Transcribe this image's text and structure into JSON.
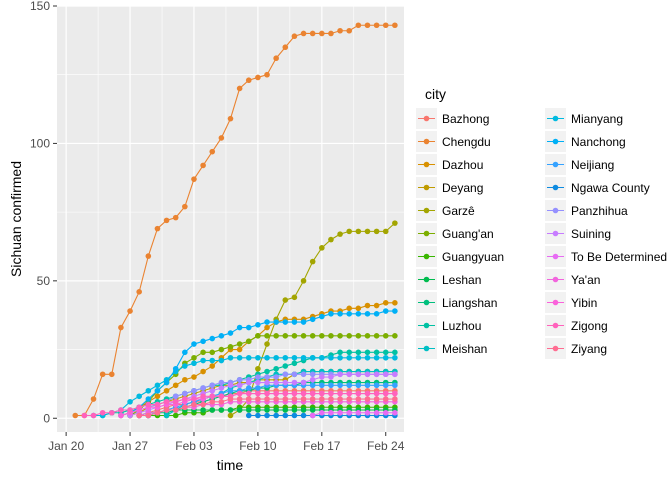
{
  "chart_data": {
    "type": "line",
    "title": "",
    "xlabel": "time",
    "ylabel": "Sichuan  confirmed",
    "x": [
      "2020-01-21",
      "2020-01-22",
      "2020-01-23",
      "2020-01-24",
      "2020-01-25",
      "2020-01-26",
      "2020-01-27",
      "2020-01-28",
      "2020-01-29",
      "2020-01-30",
      "2020-01-31",
      "2020-02-01",
      "2020-02-02",
      "2020-02-03",
      "2020-02-04",
      "2020-02-05",
      "2020-02-06",
      "2020-02-07",
      "2020-02-08",
      "2020-02-09",
      "2020-02-10",
      "2020-02-11",
      "2020-02-12",
      "2020-02-13",
      "2020-02-14",
      "2020-02-15",
      "2020-02-16",
      "2020-02-17",
      "2020-02-18",
      "2020-02-19",
      "2020-02-20",
      "2020-02-21",
      "2020-02-22",
      "2020-02-23",
      "2020-02-24",
      "2020-02-25"
    ],
    "xlim": [
      "2020-01-19",
      "2020-02-26"
    ],
    "ylim": [
      -5,
      150
    ],
    "x_ticks": [
      {
        "date": "2020-01-20",
        "label": "Jan 20"
      },
      {
        "date": "2020-01-27",
        "label": "Jan 27"
      },
      {
        "date": "2020-02-03",
        "label": "Feb 03"
      },
      {
        "date": "2020-02-10",
        "label": "Feb 10"
      },
      {
        "date": "2020-02-17",
        "label": "Feb 17"
      },
      {
        "date": "2020-02-24",
        "label": "Feb 24"
      }
    ],
    "y_ticks": [
      0,
      50,
      100,
      150
    ],
    "grid": true,
    "legend": {
      "title": "city",
      "placement": "right",
      "columns": 2
    },
    "series": [
      {
        "name": "Bazhong",
        "color": "#F8766D",
        "values": [
          null,
          null,
          null,
          null,
          null,
          null,
          null,
          1,
          2,
          3,
          4,
          5,
          5,
          6,
          6,
          7,
          8,
          9,
          9,
          10,
          10,
          10,
          10,
          10,
          10,
          10,
          10,
          10,
          10,
          10,
          10,
          10,
          10,
          10,
          10,
          10
        ]
      },
      {
        "name": "Chengdu",
        "color": "#EA8331",
        "values": [
          1,
          1,
          7,
          16,
          16,
          33,
          39,
          46,
          59,
          69,
          72,
          73,
          77,
          87,
          92,
          97,
          102,
          109,
          120,
          123,
          124,
          125,
          131,
          135,
          139,
          140,
          140,
          140,
          140,
          141,
          141,
          143,
          143,
          143,
          143,
          143
        ]
      },
      {
        "name": "Dazhou",
        "color": "#D89000",
        "values": [
          null,
          null,
          null,
          null,
          null,
          1,
          2,
          4,
          6,
          8,
          10,
          12,
          14,
          15,
          17,
          19,
          22,
          25,
          25,
          28,
          30,
          33,
          35,
          36,
          36,
          36,
          37,
          38,
          39,
          39,
          40,
          40,
          41,
          41,
          42,
          42
        ]
      },
      {
        "name": "Deyang",
        "color": "#C09B00",
        "values": [
          null,
          null,
          null,
          null,
          null,
          null,
          1,
          2,
          4,
          5,
          6,
          7,
          8,
          9,
          10,
          11,
          12,
          12,
          13,
          13,
          14,
          14,
          14,
          14,
          16,
          17,
          17,
          17,
          17,
          17,
          17,
          17,
          17,
          17,
          17,
          17
        ]
      },
      {
        "name": "Garzê",
        "color": "#A3A500",
        "values": [
          null,
          null,
          null,
          null,
          null,
          null,
          null,
          null,
          null,
          null,
          null,
          null,
          null,
          null,
          null,
          null,
          null,
          1,
          3,
          7,
          18,
          27,
          36,
          43,
          44,
          50,
          57,
          62,
          65,
          67,
          68,
          68,
          68,
          68,
          68,
          71
        ]
      },
      {
        "name": "Guang'an",
        "color": "#7CAE00",
        "values": [
          null,
          null,
          null,
          null,
          null,
          null,
          1,
          3,
          6,
          10,
          13,
          16,
          20,
          22,
          24,
          24,
          25,
          26,
          27,
          28,
          30,
          30,
          30,
          30,
          30,
          30,
          30,
          30,
          30,
          30,
          30,
          30,
          30,
          30,
          30,
          30
        ]
      },
      {
        "name": "Guangyuan",
        "color": "#39B600",
        "values": [
          null,
          null,
          null,
          null,
          null,
          null,
          null,
          null,
          1,
          1,
          1,
          1,
          2,
          2,
          2,
          3,
          3,
          3,
          4,
          4,
          4,
          4,
          4,
          4,
          4,
          4,
          4,
          4,
          4,
          4,
          4,
          4,
          4,
          4,
          4,
          4
        ]
      },
      {
        "name": "Leshan",
        "color": "#00BB4E",
        "values": [
          null,
          null,
          null,
          null,
          null,
          null,
          null,
          1,
          2,
          2,
          3,
          3,
          3,
          3,
          3,
          3,
          3,
          3,
          3,
          3,
          3,
          3,
          3,
          3,
          3,
          3,
          3,
          3,
          3,
          3,
          3,
          3,
          3,
          3,
          3,
          3
        ]
      },
      {
        "name": "Liangshan",
        "color": "#00BF7D",
        "values": [
          null,
          null,
          null,
          null,
          null,
          null,
          null,
          null,
          1,
          2,
          2,
          3,
          4,
          5,
          6,
          7,
          8,
          9,
          10,
          10,
          11,
          11,
          12,
          12,
          12,
          13,
          13,
          13,
          13,
          13,
          13,
          13,
          13,
          13,
          13,
          13
        ]
      },
      {
        "name": "Luzhou",
        "color": "#00C1A3",
        "values": [
          null,
          null,
          null,
          1,
          2,
          2,
          3,
          4,
          5,
          6,
          7,
          8,
          9,
          10,
          11,
          12,
          12,
          13,
          14,
          15,
          16,
          17,
          18,
          19,
          20,
          21,
          22,
          22,
          23,
          24,
          24,
          24,
          24,
          24,
          24,
          24
        ]
      },
      {
        "name": "Meishan",
        "color": "#00BFC4",
        "values": [
          null,
          null,
          null,
          null,
          null,
          null,
          null,
          null,
          null,
          null,
          1,
          3,
          5,
          6,
          7,
          8,
          9,
          11,
          12,
          13,
          14,
          15,
          16,
          16,
          16,
          17,
          17,
          17,
          17,
          17,
          17,
          17,
          17,
          17,
          17,
          17
        ]
      },
      {
        "name": "Mianyang",
        "color": "#00BAE0",
        "values": [
          null,
          null,
          1,
          1,
          2,
          3,
          6,
          8,
          10,
          12,
          14,
          17,
          19,
          20,
          21,
          21,
          21,
          22,
          22,
          22,
          22,
          22,
          22,
          22,
          22,
          22,
          22,
          22,
          22,
          22,
          22,
          22,
          22,
          22,
          22,
          22
        ]
      },
      {
        "name": "Nanchong",
        "color": "#00B0F6",
        "values": [
          null,
          null,
          null,
          null,
          null,
          null,
          2,
          4,
          7,
          10,
          13,
          18,
          24,
          27,
          28,
          29,
          30,
          31,
          33,
          33,
          34,
          35,
          35,
          35,
          35,
          35,
          36,
          37,
          38,
          38,
          38,
          38,
          38,
          38,
          39,
          39
        ]
      },
      {
        "name": "Neijiang",
        "color": "#35A2FF",
        "values": [
          null,
          null,
          null,
          null,
          null,
          null,
          null,
          1,
          1,
          2,
          3,
          4,
          5,
          6,
          7,
          8,
          9,
          10,
          10,
          11,
          11,
          12,
          12,
          12,
          12,
          12,
          12,
          12,
          12,
          12,
          12,
          12,
          12,
          12,
          12,
          12
        ]
      },
      {
        "name": "Ngawa County",
        "color": "#0E8BE0",
        "values": [
          null,
          null,
          null,
          null,
          null,
          null,
          null,
          null,
          null,
          null,
          null,
          null,
          null,
          null,
          null,
          null,
          null,
          null,
          null,
          1,
          1,
          1,
          1,
          1,
          1,
          1,
          1,
          1,
          1,
          1,
          1,
          1,
          1,
          1,
          1,
          1
        ]
      },
      {
        "name": "Panzhihua",
        "color": "#9590FF",
        "values": [
          null,
          null,
          null,
          null,
          null,
          1,
          2,
          3,
          4,
          5,
          6,
          8,
          9,
          10,
          11,
          12,
          13,
          13,
          14,
          14,
          15,
          15,
          15,
          16,
          16,
          16,
          16,
          16,
          16,
          16,
          16,
          16,
          16,
          16,
          16,
          16
        ]
      },
      {
        "name": "Suining",
        "color": "#C77CFF",
        "values": [
          null,
          null,
          null,
          null,
          null,
          null,
          1,
          2,
          3,
          4,
          5,
          6,
          7,
          8,
          9,
          10,
          11,
          12,
          12,
          13,
          13,
          13,
          13,
          13,
          13,
          13,
          14,
          15,
          15,
          16,
          16,
          16,
          16,
          16,
          16,
          16
        ]
      },
      {
        "name": "To Be Determined",
        "color": "#E76BF3",
        "values": [
          null,
          null,
          null,
          null,
          null,
          null,
          null,
          null,
          null,
          null,
          null,
          null,
          null,
          null,
          null,
          null,
          null,
          null,
          null,
          null,
          null,
          null,
          null,
          null,
          null,
          null,
          1,
          2,
          2,
          2,
          2,
          2,
          2,
          2,
          2,
          2
        ]
      },
      {
        "name": "Ya'an",
        "color": "#F265DD",
        "values": [
          null,
          null,
          null,
          null,
          null,
          null,
          null,
          1,
          2,
          2,
          3,
          3,
          4,
          4,
          5,
          5,
          5,
          6,
          6,
          6,
          6,
          6,
          6,
          6,
          6,
          6,
          6,
          6,
          6,
          6,
          6,
          6,
          6,
          6,
          6,
          6
        ]
      },
      {
        "name": "Yibin",
        "color": "#FA62DB",
        "values": [
          null,
          null,
          null,
          null,
          null,
          1,
          2,
          3,
          4,
          4,
          5,
          5,
          6,
          7,
          7,
          8,
          8,
          8,
          9,
          9,
          9,
          9,
          9,
          9,
          9,
          9,
          9,
          9,
          9,
          9,
          9,
          9,
          9,
          9,
          9,
          9
        ]
      },
      {
        "name": "Zigong",
        "color": "#FF62BC",
        "values": [
          null,
          1,
          1,
          2,
          2,
          3,
          3,
          4,
          5,
          5,
          6,
          6,
          7,
          7,
          8,
          8,
          8,
          8,
          9,
          9,
          9,
          9,
          9,
          9,
          9,
          9,
          9,
          9,
          9,
          9,
          9,
          9,
          9,
          9,
          9,
          9
        ]
      },
      {
        "name": "Ziyang",
        "color": "#FF6C91",
        "values": [
          null,
          null,
          null,
          null,
          null,
          null,
          null,
          1,
          1,
          2,
          3,
          3,
          4,
          5,
          5,
          6,
          6,
          7,
          7,
          7,
          7,
          7,
          7,
          7,
          7,
          7,
          7,
          7,
          7,
          7,
          7,
          7,
          7,
          7,
          7,
          7
        ]
      }
    ]
  }
}
